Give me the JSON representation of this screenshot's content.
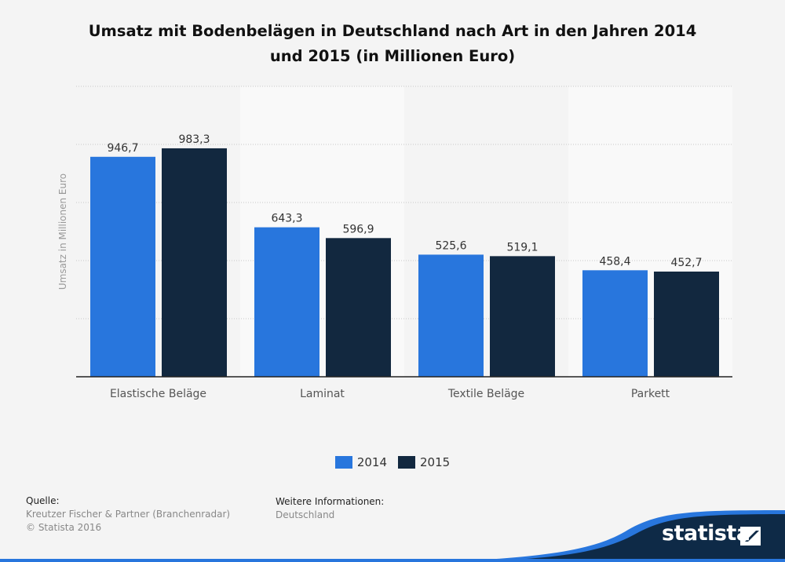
{
  "chart_data": {
    "type": "bar",
    "title": "Umsatz mit Bodenbelägen in Deutschland nach Art in den Jahren 2014 und 2015 (in Millionen Euro)",
    "xlabel": "",
    "ylabel": "Umsatz in Millionen Euro",
    "ylim": [
      0,
      1250
    ],
    "grid": true,
    "ytick_labels_shown": false,
    "legend_position": "bottom",
    "categories": [
      "Elastische Beläge",
      "Laminat",
      "Textile Beläge",
      "Parkett"
    ],
    "series": [
      {
        "name": "2014",
        "values": [
          946.7,
          643.3,
          525.6,
          458.4
        ],
        "labels": [
          "946,7",
          "643,3",
          "525,6",
          "458,4"
        ],
        "color": "#2876dd"
      },
      {
        "name": "2015",
        "values": [
          983.3,
          596.9,
          519.1,
          452.7
        ],
        "labels": [
          "983,3",
          "596,9",
          "519,1",
          "452,7"
        ],
        "color": "#12283f"
      }
    ]
  },
  "footer": {
    "source_heading": "Quelle:",
    "source": "Kreutzer Fischer & Partner (Branchenradar)",
    "copyright": "© Statista 2016",
    "info_heading": "Weitere Informationen:",
    "info": "Deutschland",
    "logo": "statista"
  }
}
